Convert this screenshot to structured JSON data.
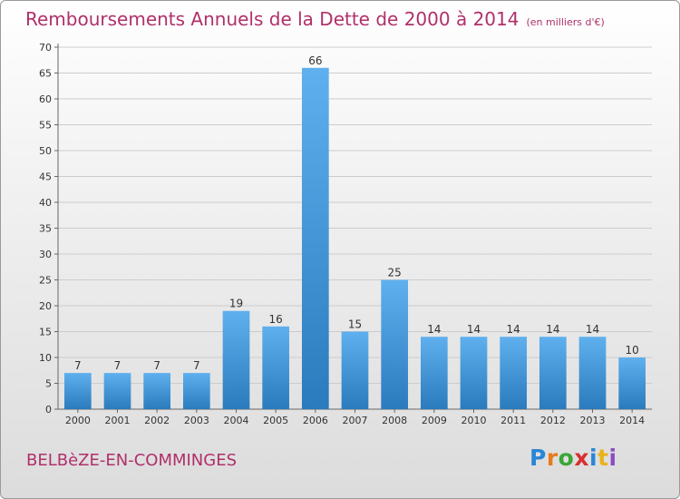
{
  "header": {
    "title": "Remboursements Annuels de la Dette de 2000 à 2014",
    "subtitle": "(en milliers d'€)"
  },
  "footer": {
    "commune": "BELBèZE-EN-COMMINGES",
    "logo": "Proxiti",
    "logo_colors": [
      "#2a86d6",
      "#e87a1c",
      "#3aa637",
      "#d82f2f",
      "#2a86d6",
      "#e8b21c",
      "#8b4fc2"
    ]
  },
  "colors": {
    "title": "#b0306a",
    "bar_top": "#5fb0ee",
    "bar_bottom": "#2a7bbd",
    "grid": "#cccccc"
  },
  "chart_data": {
    "type": "bar",
    "title": "Remboursements Annuels de la Dette de 2000 à 2014",
    "subtitle": "(en milliers d'€)",
    "categories": [
      "2000",
      "2001",
      "2002",
      "2003",
      "2004",
      "2005",
      "2006",
      "2007",
      "2008",
      "2009",
      "2010",
      "2011",
      "2012",
      "2013",
      "2014"
    ],
    "values": [
      7,
      7,
      7,
      7,
      19,
      16,
      66,
      15,
      25,
      14,
      14,
      14,
      14,
      14,
      10
    ],
    "ylim": [
      0,
      70
    ],
    "yticks": [
      0,
      5,
      10,
      15,
      20,
      25,
      30,
      35,
      40,
      45,
      50,
      55,
      60,
      65,
      70
    ],
    "grid": true,
    "data_labels": true
  }
}
